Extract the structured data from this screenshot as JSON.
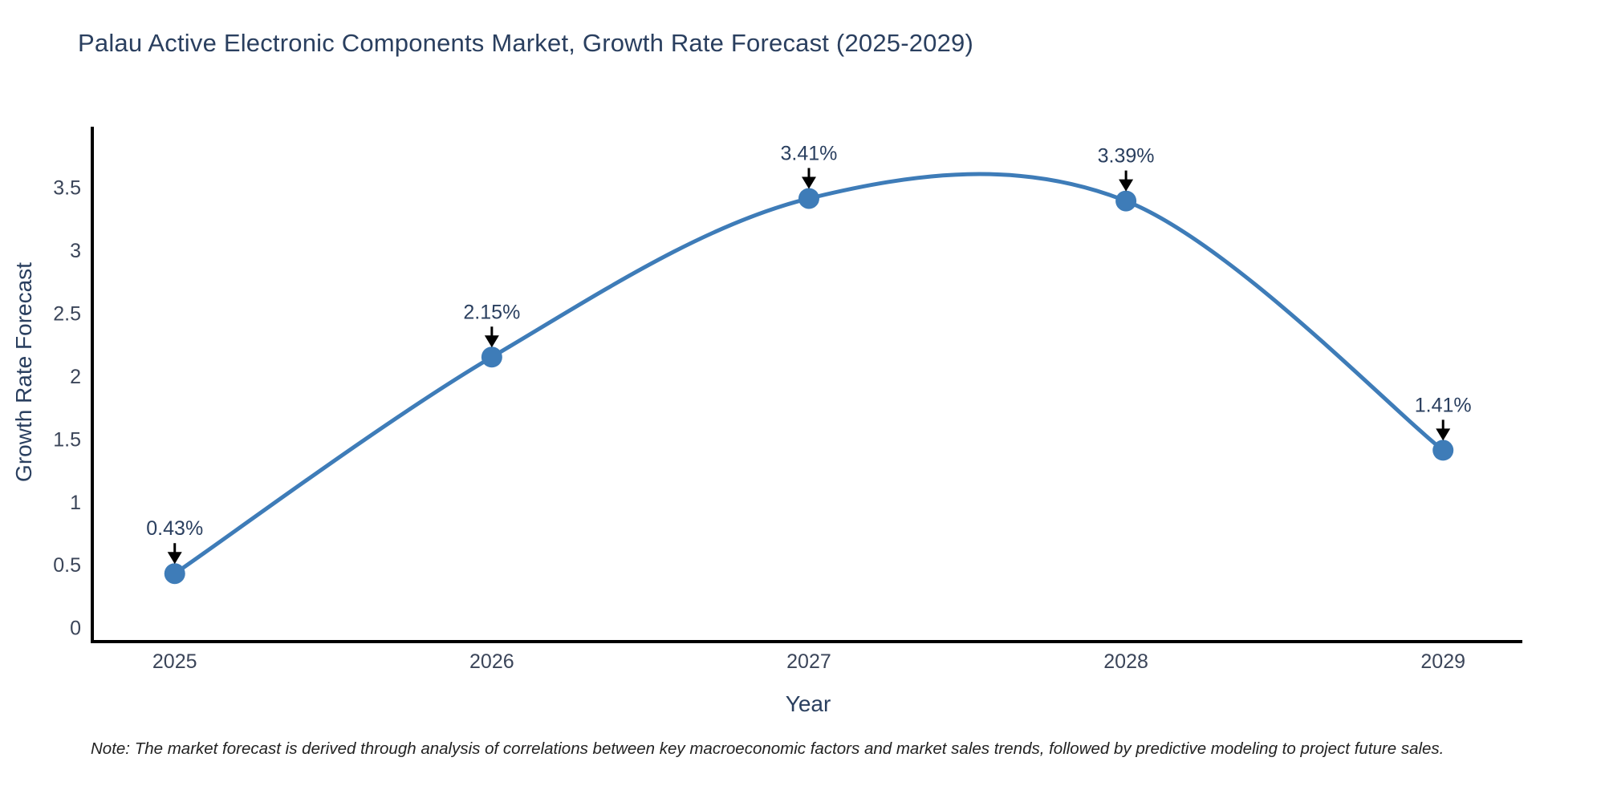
{
  "title": "Palau Active Electronic Components Market, Growth Rate Forecast (2025-2029)",
  "footnote": "Note: The market forecast is derived through analysis of correlations between key macroeconomic factors and market sales trends, followed by predictive modeling to project future sales.",
  "chart_data": {
    "type": "line",
    "line_shape": "spline",
    "title": "Palau Active Electronic Components Market, Growth Rate Forecast (2025-2029)",
    "xlabel": "Year",
    "ylabel": "Growth Rate Forecast",
    "x": [
      2025,
      2026,
      2027,
      2028,
      2029
    ],
    "values": [
      0.43,
      2.15,
      3.41,
      3.39,
      1.41
    ],
    "point_labels": [
      "0.43%",
      "2.15%",
      "3.41%",
      "3.39%",
      "1.41%"
    ],
    "xtick_labels": [
      "2025",
      "2026",
      "2027",
      "2028",
      "2029"
    ],
    "ytick_values": [
      0,
      0.5,
      1,
      1.5,
      2,
      2.5,
      3,
      3.5
    ],
    "ytick_labels": [
      "0",
      "0.5",
      "1",
      "1.5",
      "2",
      "2.5",
      "3",
      "3.5"
    ],
    "xlim": [
      2024.74,
      2029.25
    ],
    "ylim": [
      -0.11,
      3.98
    ],
    "grid": false,
    "legend": "none",
    "colors": {
      "line": "#3e7cb8",
      "marker": "#3e7cb8",
      "axis_line": "#000000",
      "title_text": "#2a3f5f",
      "tick_text": "#3b4559",
      "annotation_text": "#2a3f5f",
      "arrow": "#000000",
      "background": "#ffffff"
    }
  }
}
